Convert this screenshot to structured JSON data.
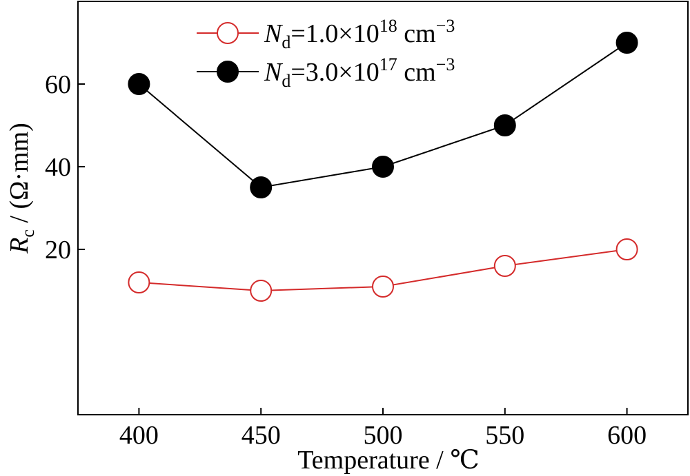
{
  "chart_data": {
    "type": "line",
    "title": "",
    "xlabel": "Temperature / ℃",
    "ylabel": {
      "symbol": "R",
      "subscript": "c",
      "unit": " / (Ω·mm)"
    },
    "x": [
      400,
      450,
      500,
      550,
      600
    ],
    "xlim": [
      375,
      625
    ],
    "ylim": [
      -20,
      80
    ],
    "xticks": [
      "400",
      "450",
      "500",
      "550",
      "600"
    ],
    "yticks": [
      "20",
      "40",
      "60"
    ],
    "grid": false,
    "legend_position": "top-center",
    "series": [
      {
        "name": {
          "symbol": "N",
          "subscript": "d",
          "rest": "=1.0×10",
          "exp": "18",
          "unit": " cm",
          "unit_exp": "−3"
        },
        "values": [
          12,
          10,
          11,
          16,
          20
        ],
        "color": "#d42a2a",
        "marker": "open-circle"
      },
      {
        "name": {
          "symbol": "N",
          "subscript": "d",
          "rest": "=3.0×10",
          "exp": "17",
          "unit": " cm",
          "unit_exp": "−3"
        },
        "values": [
          60,
          35,
          40,
          50,
          70
        ],
        "color": "#000000",
        "marker": "filled-circle"
      }
    ]
  }
}
